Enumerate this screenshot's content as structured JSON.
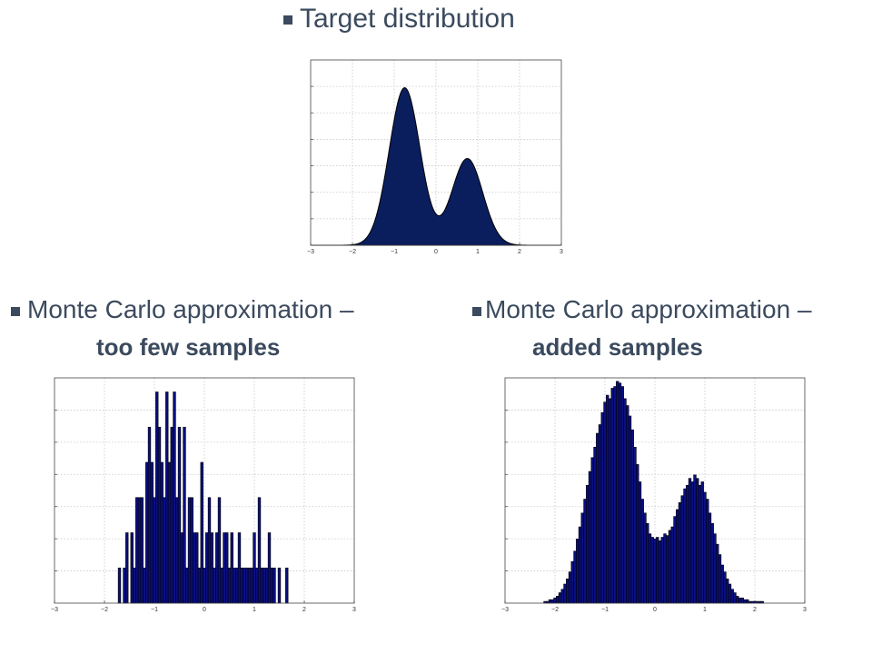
{
  "slide": {
    "title": "Target distribution",
    "left_caption_line1": "Monte Carlo approximation  –",
    "left_caption_line2": "too few samples",
    "right_caption_line1": "Monte Carlo approximation –",
    "right_caption_line2": "added samples"
  },
  "colors": {
    "text": "#3b4a5e",
    "fill": "#0a1e5e",
    "bar": "#0a0f80",
    "grid": "#c8c8c8"
  },
  "chart_data": [
    {
      "type": "area",
      "title": "",
      "xlim": [
        -3,
        3
      ],
      "xticks": [
        "−3",
        "−2",
        "−1",
        "0",
        "1",
        "2",
        "3"
      ],
      "grid": true,
      "density": {
        "components": [
          {
            "mean": -0.75,
            "sd": 0.37,
            "weight": 0.645
          },
          {
            "mean": 0.75,
            "sd": 0.37,
            "weight": 0.355
          }
        ]
      }
    },
    {
      "type": "bar",
      "title": "",
      "xlim": [
        -3,
        3
      ],
      "xticks": [
        "−3",
        "−2",
        "−1",
        "0",
        "1",
        "2",
        "3"
      ],
      "grid": true,
      "bin_width": 0.05,
      "x": [
        -1.7,
        -1.65,
        -1.6,
        -1.55,
        -1.5,
        -1.45,
        -1.4,
        -1.35,
        -1.3,
        -1.25,
        -1.2,
        -1.15,
        -1.1,
        -1.05,
        -1.0,
        -0.95,
        -0.9,
        -0.85,
        -0.8,
        -0.75,
        -0.7,
        -0.65,
        -0.6,
        -0.55,
        -0.5,
        -0.45,
        -0.4,
        -0.35,
        -0.3,
        -0.25,
        -0.2,
        -0.15,
        -0.1,
        -0.05,
        0.0,
        0.05,
        0.1,
        0.15,
        0.2,
        0.25,
        0.3,
        0.35,
        0.4,
        0.45,
        0.5,
        0.55,
        0.6,
        0.65,
        0.7,
        0.75,
        0.8,
        0.85,
        0.9,
        0.95,
        1.0,
        1.05,
        1.1,
        1.15,
        1.2,
        1.25,
        1.3,
        1.35,
        1.4,
        1.45,
        1.5,
        1.55,
        1.6,
        1.65
      ],
      "values": [
        1,
        0,
        1,
        2,
        0,
        2,
        1,
        3,
        3,
        3,
        1,
        4,
        5,
        4,
        3,
        6,
        5,
        4,
        3,
        6,
        4,
        5,
        6,
        3,
        5,
        2,
        5,
        1,
        3,
        3,
        2,
        2,
        1,
        4,
        1,
        2,
        3,
        2,
        1,
        2,
        3,
        1,
        2,
        2,
        1,
        2,
        1,
        1,
        2,
        1,
        1,
        1,
        1,
        1,
        2,
        1,
        3,
        1,
        1,
        1,
        2,
        1,
        1,
        0,
        1,
        0,
        0,
        1
      ],
      "ylim": [
        0,
        6.4
      ]
    },
    {
      "type": "bar",
      "title": "",
      "xlim": [
        -3,
        3
      ],
      "xticks": [
        "−3",
        "−2",
        "−1",
        "0",
        "1",
        "2",
        "3"
      ],
      "grid": true,
      "bin_width": 0.05,
      "x": [
        -2.2,
        -2.15,
        -2.1,
        -2.05,
        -2.0,
        -1.95,
        -1.9,
        -1.85,
        -1.8,
        -1.75,
        -1.7,
        -1.65,
        -1.6,
        -1.55,
        -1.5,
        -1.45,
        -1.4,
        -1.35,
        -1.3,
        -1.25,
        -1.2,
        -1.15,
        -1.1,
        -1.05,
        -1.0,
        -0.95,
        -0.9,
        -0.85,
        -0.8,
        -0.75,
        -0.7,
        -0.65,
        -0.6,
        -0.55,
        -0.5,
        -0.45,
        -0.4,
        -0.35,
        -0.3,
        -0.25,
        -0.2,
        -0.15,
        -0.1,
        -0.05,
        0.0,
        0.05,
        0.1,
        0.15,
        0.2,
        0.25,
        0.3,
        0.35,
        0.4,
        0.45,
        0.5,
        0.55,
        0.6,
        0.65,
        0.7,
        0.75,
        0.8,
        0.85,
        0.9,
        0.95,
        1.0,
        1.05,
        1.1,
        1.15,
        1.2,
        1.25,
        1.3,
        1.35,
        1.4,
        1.45,
        1.5,
        1.55,
        1.6,
        1.65,
        1.7,
        1.75,
        1.8,
        1.85,
        1.9,
        1.95,
        2.0,
        2.05,
        2.1,
        2.15,
        2.2
      ],
      "values": [
        1,
        1,
        2,
        2,
        3,
        4,
        6,
        8,
        11,
        14,
        18,
        24,
        30,
        37,
        44,
        52,
        60,
        68,
        76,
        84,
        90,
        98,
        103,
        110,
        116,
        120,
        118,
        124,
        125,
        128,
        127,
        125,
        118,
        114,
        108,
        100,
        90,
        80,
        70,
        60,
        52,
        46,
        40,
        38,
        37,
        38,
        36,
        38,
        40,
        39,
        42,
        44,
        50,
        54,
        58,
        62,
        66,
        68,
        72,
        70,
        74,
        72,
        68,
        70,
        64,
        60,
        52,
        46,
        40,
        34,
        28,
        22,
        18,
        14,
        11,
        8,
        6,
        4,
        3,
        3,
        2,
        2,
        1,
        1,
        1,
        1,
        1,
        1,
        0
      ],
      "ylim": [
        0,
        130
      ]
    }
  ]
}
